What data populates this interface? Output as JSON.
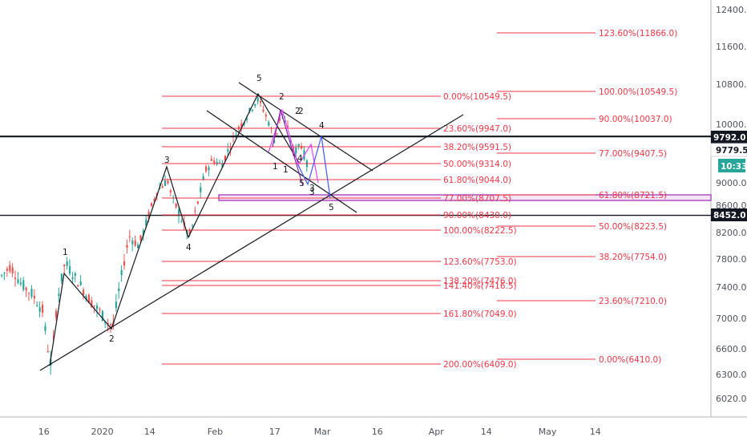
{
  "chart_data": {
    "type": "candlestick",
    "title": "",
    "x_ticks": [
      "16",
      "2020",
      "14",
      "Feb",
      "17",
      "Mar",
      "16",
      "Apr",
      "14",
      "May",
      "14"
    ],
    "y_ticks": [
      "12400.0",
      "11600.0",
      "10800.0",
      "10000.0",
      "9000.0",
      "8600.0",
      "8200.0",
      "7800.0",
      "7400.0",
      "7000.0",
      "6600.0",
      "6300.0",
      "6020.0"
    ],
    "ylim": [
      5800,
      12600
    ],
    "price_labels": {
      "resistance": "9792.0",
      "current": "9779.5",
      "countdown": "10:33",
      "support": "8452.0"
    },
    "horizontal_levels": [
      {
        "price": 9792.0,
        "label": "9792.0"
      },
      {
        "price": 8452.0,
        "label": "8452.0"
      }
    ],
    "fib_retracement_left": [
      {
        "label": "0.00%(10549.5)",
        "price": 10549.5
      },
      {
        "label": "23.60%(9947.0)",
        "price": 9947.0
      },
      {
        "label": "38.20%(9591.5)",
        "price": 9591.5
      },
      {
        "label": "50.00%(9314.0)",
        "price": 9314.0
      },
      {
        "label": "61.80%(9044.0)",
        "price": 9044.0
      },
      {
        "label": "77.00%(8707.5)",
        "price": 8707.5
      },
      {
        "label": "90.00%(8430.0)",
        "price": 8430.0
      },
      {
        "label": "100.00%(8222.5)",
        "price": 8222.5
      },
      {
        "label": "123.60%(7753.0)",
        "price": 7753.0
      },
      {
        "label": "138.20%(7476.0)",
        "price": 7476.0
      },
      {
        "label": "141.40%(7416.5)",
        "price": 7416.5
      },
      {
        "label": "161.80%(7049.0)",
        "price": 7049.0
      },
      {
        "label": "200.00%(6409.0)",
        "price": 6409.0
      }
    ],
    "fib_retracement_right": [
      {
        "label": "123.60%(11866.0)",
        "price": 11866.0
      },
      {
        "label": "100.00%(10549.5)",
        "price": 10549.5
      },
      {
        "label": "90.00%(10037.0)",
        "price": 10037.0
      },
      {
        "label": "77.00%(9407.5)",
        "price": 9407.5
      },
      {
        "label": "61.80%(8721.5)",
        "price": 8721.5
      },
      {
        "label": "50.00%(8223.5)",
        "price": 8223.5
      },
      {
        "label": "38.20%(7754.0)",
        "price": 7754.0
      },
      {
        "label": "23.60%(7210.0)",
        "price": 7210.0
      },
      {
        "label": "0.00%(6410.0)",
        "price": 6410.0
      }
    ],
    "wave_labels": [
      "1",
      "2",
      "3",
      "4",
      "5",
      "1",
      "2",
      "3",
      "4",
      "5",
      "2",
      "4",
      "5",
      "1",
      "2",
      "3"
    ],
    "colors": {
      "up": "#26a69a",
      "down": "#ef5350",
      "fib": "#f23645",
      "trendline": "#131722",
      "zone": "#9c27b0",
      "wave_pink": "#e040fb",
      "wave_blue": "#3d5afe",
      "wave_purple": "#7b1fa2",
      "countdown": "#26a69a"
    }
  }
}
